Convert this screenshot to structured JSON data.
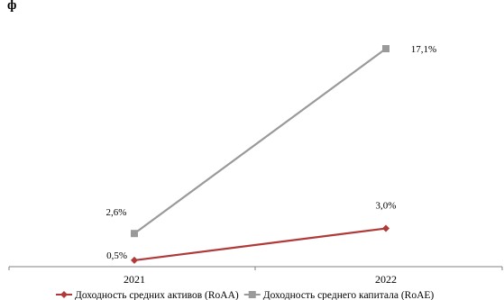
{
  "chart_data": {
    "type": "line",
    "title_fragment": "ф",
    "categories": [
      "2021",
      "2022"
    ],
    "series": [
      {
        "name": "Доходность средних активов (RoAA)",
        "values": [
          0.5,
          3.0
        ],
        "labels": [
          "0,5%",
          "3,0%"
        ],
        "color": "#b03a3a",
        "marker": "diamond"
      },
      {
        "name": "Доходность среднего капитала (RoAE)",
        "values": [
          2.6,
          17.1
        ],
        "labels": [
          "2,6%",
          "17,1%"
        ],
        "color": "#9a9a9a",
        "marker": "square"
      }
    ],
    "ylim": [
      0,
      18.5
    ],
    "grid": false,
    "legend_position": "bottom"
  }
}
